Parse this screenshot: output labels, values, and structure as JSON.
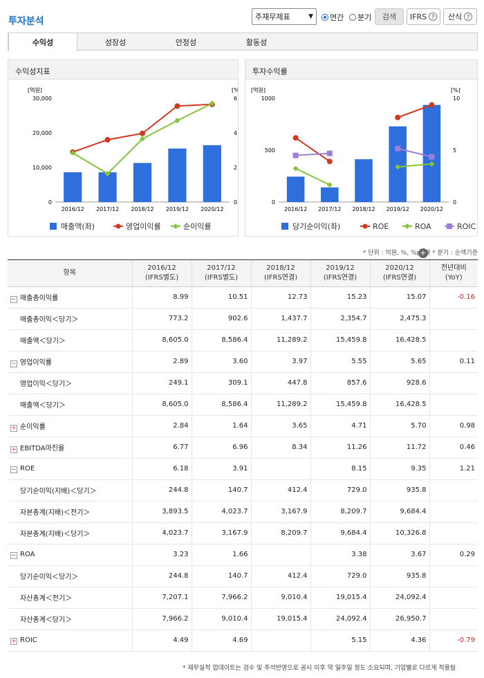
{
  "title": "투자분석",
  "select_value": "주재무제표",
  "radio_annual": "연간",
  "radio_quarter": "분기",
  "btn_search": "검색",
  "btn_ifrs": "IFRS",
  "btn_formula": "산식",
  "tabs": [
    "수익성",
    "성장성",
    "안정성",
    "활동성"
  ],
  "chart1": {
    "header": "수익성지표",
    "lunit": "[억원]",
    "runit": "[%]",
    "lticks": [
      "30,000",
      "20,000",
      "10,000",
      "0"
    ],
    "rticks": [
      "6",
      "4",
      "2",
      "0"
    ],
    "categories": [
      "2016/12",
      "2017/12",
      "2018/12",
      "2019/12",
      "2020/12"
    ],
    "legend": [
      "매출액(좌)",
      "영업이익률",
      "순이익률"
    ]
  },
  "chart2": {
    "header": "투자수익률",
    "lunit": "[억원]",
    "runit": "[%]",
    "lticks": [
      "1000",
      "500",
      "0"
    ],
    "rticks": [
      "10",
      "5",
      "0"
    ],
    "categories": [
      "2016/12",
      "2017/12",
      "2018/12",
      "2019/12",
      "2020/12"
    ],
    "legend": [
      "당기순이익(좌)",
      "ROE",
      "ROA",
      "ROIC"
    ]
  },
  "chart_data": [
    {
      "type": "bar",
      "title": "수익성지표",
      "categories": [
        "2016/12",
        "2017/12",
        "2018/12",
        "2019/12",
        "2020/12"
      ],
      "ylim_left": [
        0,
        30000
      ],
      "ylim_right": [
        0,
        6
      ],
      "series": [
        {
          "name": "매출액(좌)",
          "axis": "left",
          "type": "bar",
          "color": "#2f6fdd",
          "values": [
            8605.0,
            8586.4,
            11289.2,
            15459.8,
            16428.5
          ]
        },
        {
          "name": "영업이익률",
          "axis": "right",
          "type": "line",
          "color": "#d0391f",
          "values": [
            2.89,
            3.6,
            3.97,
            5.55,
            5.65
          ]
        },
        {
          "name": "순이익률",
          "axis": "right",
          "type": "line",
          "color": "#86c43a",
          "values": [
            2.84,
            1.64,
            3.65,
            4.71,
            5.7
          ]
        }
      ]
    },
    {
      "type": "bar",
      "title": "투자수익률",
      "categories": [
        "2016/12",
        "2017/12",
        "2018/12",
        "2019/12",
        "2020/12"
      ],
      "ylim_left": [
        0,
        1000
      ],
      "ylim_right": [
        0,
        10
      ],
      "series": [
        {
          "name": "당기순이익(좌)",
          "axis": "left",
          "type": "bar",
          "color": "#2f6fdd",
          "values": [
            244.8,
            140.7,
            412.4,
            729.0,
            935.8
          ]
        },
        {
          "name": "ROE",
          "axis": "right",
          "type": "line",
          "color": "#d0391f",
          "values": [
            6.18,
            3.91,
            null,
            8.15,
            9.35
          ]
        },
        {
          "name": "ROA",
          "axis": "right",
          "type": "line",
          "color": "#86c43a",
          "values": [
            3.23,
            1.66,
            null,
            3.38,
            3.67
          ]
        },
        {
          "name": "ROIC",
          "axis": "right",
          "type": "line",
          "color": "#9b7fd6",
          "values": [
            4.49,
            4.69,
            null,
            5.15,
            4.36
          ]
        }
      ]
    }
  ],
  "note": "* 단위 : 억원, %, %p, 배    * 분기 : 순액기준",
  "table": {
    "headers": [
      [
        "항목",
        ""
      ],
      [
        "2016/12",
        "(IFRS별도)"
      ],
      [
        "2017/12",
        "(IFRS별도)"
      ],
      [
        "2018/12",
        "(IFRS연결)"
      ],
      [
        "2019/12",
        "(IFRS연결)"
      ],
      [
        "2020/12",
        "(IFRS연결)"
      ],
      [
        "전년대비",
        "(YoY)"
      ]
    ],
    "rows": [
      {
        "label": "매출총이익률",
        "icon": "minus",
        "values": [
          "8.99",
          "10.51",
          "12.73",
          "15.23",
          "15.07",
          "-0.16"
        ]
      },
      {
        "label": "매출총이익＜당기＞",
        "sub": true,
        "values": [
          "773.2",
          "902.6",
          "1,437.7",
          "2,354.7",
          "2,475.3",
          ""
        ]
      },
      {
        "label": "매출액＜당기＞",
        "sub": true,
        "values": [
          "8,605.0",
          "8,586.4",
          "11,289.2",
          "15,459.8",
          "16,428.5",
          ""
        ]
      },
      {
        "label": "영업이익률",
        "icon": "minus",
        "values": [
          "2.89",
          "3.60",
          "3.97",
          "5.55",
          "5.65",
          "0.11"
        ]
      },
      {
        "label": "영업이익＜당기＞",
        "sub": true,
        "values": [
          "249.1",
          "309.1",
          "447.8",
          "857.6",
          "928.6",
          ""
        ]
      },
      {
        "label": "매출액＜당기＞",
        "sub": true,
        "values": [
          "8,605.0",
          "8,586.4",
          "11,289.2",
          "15,459.8",
          "16,428.5",
          ""
        ]
      },
      {
        "label": "순이익률",
        "icon": "plus",
        "values": [
          "2.84",
          "1.64",
          "3.65",
          "4.71",
          "5.70",
          "0.98"
        ]
      },
      {
        "label": "EBITDA마진율",
        "icon": "plus",
        "values": [
          "6.77",
          "6.96",
          "8.34",
          "11.26",
          "11.72",
          "0.46"
        ]
      },
      {
        "label": "ROE",
        "icon": "minus",
        "values": [
          "6.18",
          "3.91",
          "",
          "8.15",
          "9.35",
          "1.21"
        ]
      },
      {
        "label": "당기순이익(지배)＜당기＞",
        "sub": true,
        "values": [
          "244.8",
          "140.7",
          "412.4",
          "729.0",
          "935.8",
          ""
        ]
      },
      {
        "label": "자본총계(지배)＜전기＞",
        "sub": true,
        "values": [
          "3,893.5",
          "4,023.7",
          "3,167.9",
          "8,209.7",
          "9,684.4",
          ""
        ]
      },
      {
        "label": "자본총계(지배)＜당기＞",
        "sub": true,
        "values": [
          "4,023.7",
          "3,167.9",
          "8,209.7",
          "9,684.4",
          "10,326.8",
          ""
        ]
      },
      {
        "label": "ROA",
        "icon": "minus",
        "values": [
          "3.23",
          "1.66",
          "",
          "3.38",
          "3.67",
          "0.29"
        ]
      },
      {
        "label": "당기순이익＜당기＞",
        "sub": true,
        "values": [
          "244.8",
          "140.7",
          "412.4",
          "729.0",
          "935.8",
          ""
        ]
      },
      {
        "label": "자산총계＜전기＞",
        "sub": true,
        "values": [
          "7,207.1",
          "7,966.2",
          "9,010.4",
          "19,015.4",
          "24,092.4",
          ""
        ]
      },
      {
        "label": "자산총계＜당기＞",
        "sub": true,
        "values": [
          "7,966.2",
          "9,010.4",
          "19,015.4",
          "24,092.4",
          "26,950.7",
          ""
        ]
      },
      {
        "label": "ROIC",
        "icon": "plus",
        "values": [
          "4.49",
          "4.69",
          "",
          "5.15",
          "4.36",
          "-0.79"
        ]
      }
    ]
  },
  "footnote": "* 재무실적 업데이트는 검수 및 주석반영으로 공시 이후 약 일주일 정도 소요되며, 기업별로 다르게 적용됩"
}
